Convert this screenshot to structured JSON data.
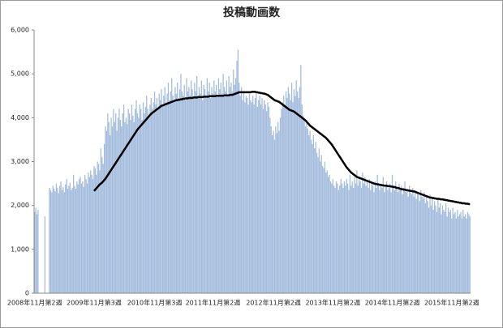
{
  "chart_data": {
    "type": "bar",
    "title": "投稿動画数",
    "categories": [
      "2008年11月第2週",
      null,
      null,
      null,
      null,
      null,
      null,
      null,
      null,
      null,
      null,
      null,
      null,
      null,
      null,
      null,
      null,
      null,
      null,
      null,
      null,
      null,
      null,
      null,
      null,
      null,
      null,
      null,
      null,
      null,
      null,
      null,
      null,
      null,
      null,
      null,
      null,
      null,
      null,
      null,
      null,
      null,
      null,
      null,
      null,
      null,
      null,
      null,
      null,
      null,
      null,
      null,
      "2009年11月第3週",
      null,
      null,
      null,
      null,
      null,
      null,
      null,
      null,
      null,
      null,
      null,
      null,
      null,
      null,
      null,
      null,
      null,
      null,
      null,
      null,
      null,
      null,
      null,
      null,
      null,
      null,
      null,
      null,
      null,
      null,
      null,
      null,
      null,
      null,
      null,
      null,
      null,
      null,
      null,
      null,
      null,
      null,
      null,
      null,
      null,
      null,
      null,
      null,
      null,
      null,
      null,
      null,
      "2010年11月第3週",
      null,
      null,
      null,
      null,
      null,
      null,
      null,
      null,
      null,
      null,
      null,
      null,
      null,
      null,
      null,
      null,
      null,
      null,
      null,
      null,
      null,
      null,
      null,
      null,
      null,
      null,
      null,
      null,
      null,
      null,
      null,
      null,
      null,
      null,
      null,
      null,
      null,
      null,
      null,
      null,
      null,
      null,
      null,
      null,
      null,
      null,
      null,
      null,
      null,
      null,
      "2011年11月第2週",
      null,
      null,
      null,
      null,
      null,
      null,
      null,
      null,
      null,
      null,
      null,
      null,
      null,
      null,
      null,
      null,
      null,
      null,
      null,
      null,
      null,
      null,
      null,
      null,
      null,
      null,
      null,
      null,
      null,
      null,
      null,
      null,
      null,
      null,
      null,
      null,
      null,
      null,
      null,
      null,
      null,
      null,
      null,
      null,
      null,
      null,
      null,
      null,
      null,
      null,
      null,
      null,
      "2012年11月第2週",
      null,
      null,
      null,
      null,
      null,
      null,
      null,
      null,
      null,
      null,
      null,
      null,
      null,
      null,
      null,
      null,
      null,
      null,
      null,
      null,
      null,
      null,
      null,
      null,
      null,
      null,
      null,
      null,
      null,
      null,
      null,
      null,
      null,
      null,
      null,
      null,
      null,
      null,
      null,
      null,
      null,
      null,
      null,
      null,
      null,
      null,
      null,
      null,
      null,
      null,
      null,
      "2013年11月第2週",
      null,
      null,
      null,
      null,
      null,
      null,
      null,
      null,
      null,
      null,
      null,
      null,
      null,
      null,
      null,
      null,
      null,
      null,
      null,
      null,
      null,
      null,
      null,
      null,
      null,
      null,
      null,
      null,
      null,
      null,
      null,
      null,
      null,
      null,
      null,
      null,
      null,
      null,
      null,
      null,
      null,
      null,
      null,
      null,
      null,
      null,
      null,
      null,
      null,
      null,
      null,
      "2014年11月第2週",
      null,
      null,
      null,
      null,
      null,
      null,
      null,
      null,
      null,
      null,
      null,
      null,
      null,
      null,
      null,
      null,
      null,
      null,
      null,
      null,
      null,
      null,
      null,
      null,
      null,
      null,
      null,
      null,
      null,
      null,
      null,
      null,
      null,
      null,
      null,
      null,
      null,
      null,
      null,
      null,
      null,
      null,
      null,
      null,
      null,
      null,
      null,
      null,
      null,
      null,
      null,
      "2015年11月第2週",
      null,
      null,
      null,
      null,
      null,
      null,
      null,
      null,
      null,
      null,
      null,
      null,
      null,
      null,
      null,
      null
    ],
    "series": [
      {
        "color": "#a3bcdd",
        "values": [
          1850,
          1950,
          1800,
          1900,
          0,
          0,
          0,
          0,
          0,
          1750,
          0,
          0,
          0,
          2400,
          2350,
          2300,
          2450,
          2380,
          2320,
          2500,
          2400,
          2280,
          2450,
          2550,
          2350,
          2420,
          2300,
          2480,
          2600,
          2380,
          2450,
          2520,
          2350,
          2400,
          2700,
          2450,
          2380,
          2550,
          2480,
          2600,
          2650,
          2500,
          2550,
          2420,
          2700,
          2600,
          2500,
          2750,
          2650,
          2800,
          2700,
          2600,
          2900,
          2850,
          2700,
          3000,
          2950,
          2800,
          3300,
          3100,
          2950,
          3400,
          3800,
          3700,
          4100,
          3900,
          3600,
          4000,
          3800,
          4200,
          3900,
          4100,
          3700,
          4000,
          4200,
          3950,
          3800,
          4100,
          4300,
          3900,
          4000,
          3850,
          4200,
          4100,
          3950,
          4300,
          4050,
          3900,
          4200,
          4400,
          4100,
          4000,
          4300,
          4200,
          3950,
          4350,
          4100,
          4250,
          4500,
          4200,
          4050,
          4300,
          4450,
          4200,
          4350,
          4600,
          4300,
          4450,
          4200,
          4550,
          4400,
          4650,
          4300,
          4500,
          4700,
          4350,
          4550,
          4800,
          4400,
          4600,
          4900,
          4500,
          4350,
          4700,
          4550,
          4800,
          4450,
          4650,
          5000,
          4600,
          4500,
          4750,
          4400,
          4900,
          4600,
          4700,
          4500,
          4850,
          4650,
          4450,
          4800,
          4600,
          4950,
          4500,
          4700,
          4550,
          4850,
          4400,
          4750,
          4650,
          4500,
          4900,
          4600,
          4800,
          4450,
          4700,
          4550,
          4850,
          4600,
          4750,
          4500,
          4900,
          4650,
          4800,
          4550,
          5000,
          4700,
          4600,
          4850,
          4500,
          4950,
          4700,
          4800,
          4600,
          5100,
          4750,
          4900,
          5300,
          5550,
          4800,
          4500,
          4700,
          4400,
          4600,
          4350,
          4500,
          4450,
          4300,
          4550,
          4400,
          4350,
          4500,
          4300,
          4450,
          4550,
          4250,
          4400,
          4500,
          4300,
          4450,
          4200,
          4400,
          4300,
          4150,
          4350,
          4250,
          4000,
          3800,
          3600,
          3700,
          3500,
          3800,
          3650,
          3900,
          3700,
          4000,
          4200,
          4350,
          4500,
          4300,
          4600,
          4450,
          4700,
          4550,
          4400,
          4800,
          4350,
          4650,
          4500,
          4850,
          4600,
          4450,
          4700,
          5200,
          4300,
          4050,
          3950,
          3800,
          3900,
          3750,
          3600,
          3700,
          3500,
          3400,
          3600,
          3300,
          3450,
          3200,
          3100,
          3300,
          3000,
          3150,
          2900,
          2850,
          3000,
          2750,
          2800,
          2650,
          2700,
          2550,
          2500,
          2600,
          2450,
          2400,
          2550,
          2500,
          2350,
          2450,
          2600,
          2500,
          2400,
          2550,
          2450,
          2600,
          2500,
          2350,
          2700,
          2450,
          2550,
          2400,
          2650,
          2500,
          2800,
          2450,
          2600,
          2550,
          2400,
          2750,
          2500,
          2650,
          2450,
          2550,
          2400,
          2600,
          2350,
          2500,
          2450,
          2300,
          2550,
          2400,
          2700,
          2450,
          2350,
          2500,
          2400,
          2650,
          2300,
          2450,
          2550,
          2350,
          2400,
          2500,
          2300,
          2700,
          2450,
          2350,
          2550,
          2400,
          2300,
          2500,
          2350,
          2450,
          2250,
          2400,
          2550,
          2300,
          2350,
          2200,
          2450,
          2300,
          2250,
          2400,
          2200,
          2350,
          2150,
          2300,
          2250,
          2100,
          2350,
          2200,
          2150,
          2300,
          2050,
          2200,
          2100,
          1950,
          2250,
          2000,
          2150,
          1900,
          2100,
          2000,
          1850,
          2150,
          1950,
          2050,
          1800,
          2000,
          1900,
          1850,
          2050,
          1750,
          1950,
          1850,
          1900,
          1700,
          1950,
          1800,
          1850,
          1700,
          1900,
          1750,
          1800,
          1850,
          1700,
          1900,
          1750,
          1800,
          1700,
          1850,
          1800,
          1750
        ]
      },
      {
        "type": "line",
        "color": "#000000",
        "values": [
          null,
          null,
          null,
          null,
          null,
          null,
          null,
          null,
          null,
          null,
          null,
          null,
          null,
          null,
          null,
          null,
          null,
          null,
          null,
          null,
          null,
          null,
          null,
          null,
          null,
          null,
          null,
          null,
          null,
          null,
          null,
          null,
          null,
          null,
          null,
          null,
          null,
          null,
          null,
          null,
          null,
          null,
          null,
          null,
          null,
          null,
          null,
          null,
          null,
          null,
          null,
          null,
          2330,
          2360,
          2390,
          2420,
          2450,
          2480,
          2500,
          2520,
          2550,
          2580,
          2610,
          2650,
          2690,
          2730,
          2770,
          2810,
          2850,
          2890,
          2930,
          2970,
          3010,
          3050,
          3090,
          3130,
          3170,
          3210,
          3250,
          3290,
          3330,
          3370,
          3410,
          3450,
          3490,
          3530,
          3570,
          3610,
          3650,
          3690,
          3730,
          3760,
          3790,
          3820,
          3850,
          3880,
          3910,
          3940,
          3970,
          4000,
          4030,
          4060,
          4090,
          4110,
          4130,
          4150,
          4170,
          4190,
          4210,
          4230,
          4250,
          4270,
          4280,
          4290,
          4300,
          4310,
          4320,
          4330,
          4340,
          4350,
          4360,
          4370,
          4380,
          4390,
          4400,
          4400,
          4410,
          4410,
          4420,
          4420,
          4430,
          4430,
          4440,
          4440,
          4440,
          4450,
          4450,
          4450,
          4450,
          4460,
          4460,
          4460,
          4460,
          4470,
          4470,
          4470,
          4470,
          4470,
          4480,
          4480,
          4480,
          4480,
          4480,
          4490,
          4490,
          4490,
          4490,
          4490,
          4490,
          4500,
          4500,
          4500,
          4500,
          4500,
          4500,
          4500,
          4510,
          4510,
          4510,
          4510,
          4510,
          4520,
          4520,
          4520,
          4530,
          4540,
          4550,
          4560,
          4570,
          4580,
          4580,
          4580,
          4580,
          4580,
          4580,
          4580,
          4580,
          4580,
          4580,
          4580,
          4590,
          4590,
          4590,
          4590,
          4580,
          4580,
          4570,
          4570,
          4560,
          4560,
          4550,
          4550,
          4540,
          4530,
          4520,
          4500,
          4480,
          4460,
          4440,
          4420,
          4400,
          4390,
          4380,
          4370,
          4360,
          4340,
          4320,
          4300,
          4280,
          4260,
          4240,
          4220,
          4200,
          4180,
          4170,
          4160,
          4150,
          4140,
          4120,
          4100,
          4080,
          4060,
          4040,
          4020,
          4000,
          3980,
          3960,
          3940,
          3910,
          3880,
          3850,
          3820,
          3800,
          3780,
          3760,
          3740,
          3720,
          3700,
          3680,
          3660,
          3640,
          3620,
          3600,
          3580,
          3560,
          3540,
          3510,
          3480,
          3450,
          3420,
          3390,
          3350,
          3310,
          3270,
          3230,
          3190,
          3150,
          3110,
          3070,
          3030,
          2990,
          2950,
          2910,
          2870,
          2840,
          2810,
          2780,
          2750,
          2730,
          2710,
          2690,
          2670,
          2650,
          2640,
          2630,
          2620,
          2610,
          2600,
          2590,
          2580,
          2570,
          2560,
          2550,
          2540,
          2530,
          2520,
          2510,
          2500,
          2490,
          2490,
          2480,
          2480,
          2470,
          2470,
          2460,
          2460,
          2450,
          2450,
          2450,
          2440,
          2440,
          2440,
          2430,
          2430,
          2420,
          2420,
          2410,
          2400,
          2400,
          2390,
          2380,
          2370,
          2370,
          2360,
          2360,
          2350,
          2350,
          2340,
          2340,
          2330,
          2330,
          2320,
          2320,
          2310,
          2300,
          2290,
          2280,
          2270,
          2260,
          2250,
          2240,
          2230,
          2220,
          2210,
          2200,
          2190,
          2180,
          2180,
          2170,
          2170,
          2160,
          2160,
          2150,
          2150,
          2150,
          2140,
          2140,
          2140,
          2130,
          2130,
          2120,
          2120,
          2110,
          2110,
          2100,
          2100,
          2090,
          2090,
          2080,
          2080,
          2070,
          2070,
          2060,
          2060,
          2050,
          2050,
          2050,
          2040,
          2040,
          2040,
          2030,
          2030
        ]
      }
    ],
    "ylim": [
      0,
      6000
    ],
    "yticks": [
      0,
      {
        "value": 1000,
        "label": "1,000"
      },
      {
        "value": 2000,
        "label": "2,000"
      },
      {
        "value": 3000,
        "label": "3,000"
      },
      {
        "value": 4000,
        "label": "4,000"
      },
      {
        "value": 5000,
        "label": "5,000"
      },
      {
        "value": 6000,
        "label": "6,000"
      }
    ],
    "grid": false
  }
}
